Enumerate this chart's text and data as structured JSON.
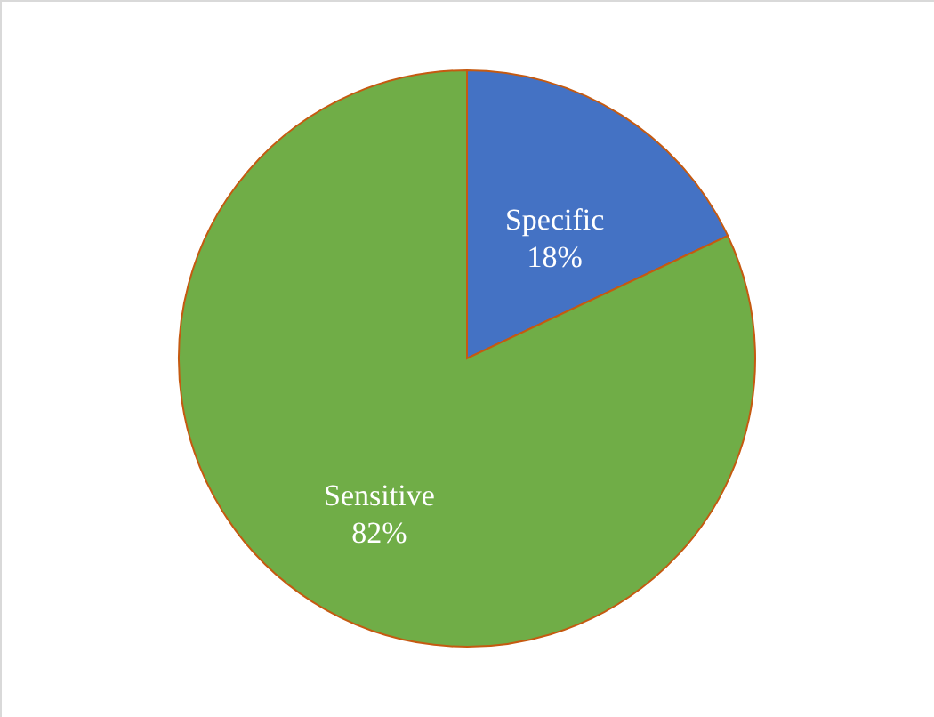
{
  "chart_data": {
    "type": "pie",
    "categories": [
      "Specific",
      "Sensitive"
    ],
    "values": [
      18,
      82
    ],
    "value_labels": [
      "18%",
      "82%"
    ],
    "colors": [
      "#4472c4",
      "#70ad47"
    ]
  }
}
